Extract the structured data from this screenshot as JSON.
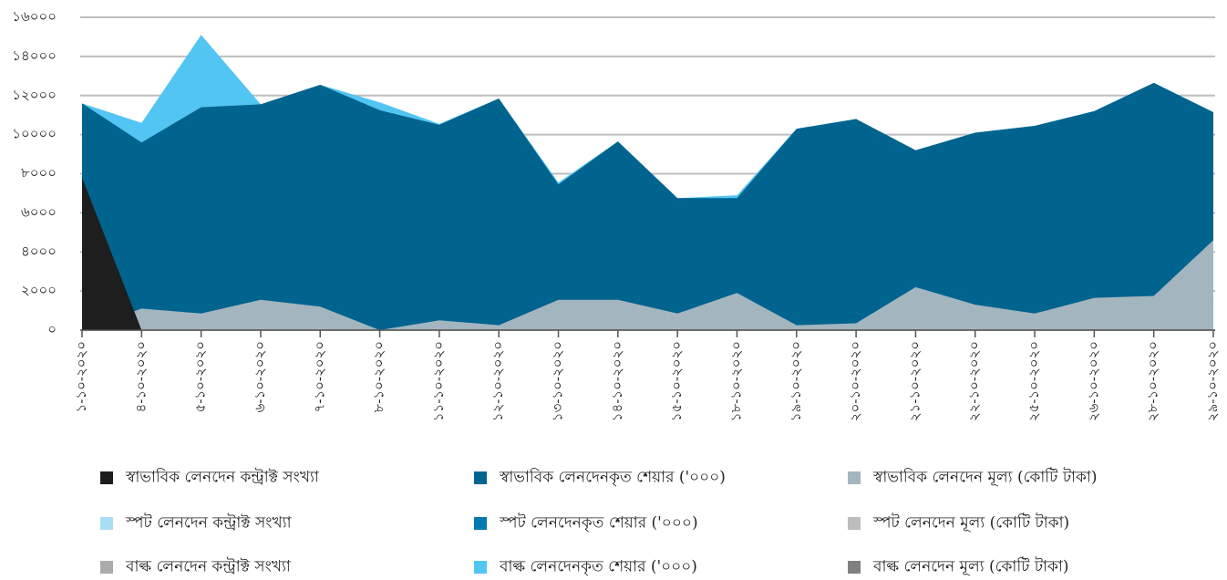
{
  "chart_data": {
    "type": "area",
    "categories": [
      "১-১০-২০২০",
      "৪-১০-২০২০",
      "৫-১০-২০২০",
      "৬-১০-২০২০",
      "৭-১০-২০২০",
      "৮-১০-২০২০",
      "১১-১০-২০২০",
      "১২-১০-২০২০",
      "১৩-১০-২০২০",
      "১৪-১০-২০২০",
      "১৫-১০-২০২০",
      "১৮-১০-২০২০",
      "১৯-১০-২০২০",
      "২০-১০-২০২০",
      "২১-১০-২০২০",
      "২২-১০-২০২০",
      "২৫-১০-২০২০",
      "২৬-১০-২০২০",
      "২৮-১০-২০২০",
      "২৯-১০-২০২০"
    ],
    "series": [
      {
        "name": "স্বাভাবিক লেনদেন কন্ট্রাক্ট সংখ্যা",
        "color": "#1e1e1e",
        "values": [
          7800,
          0,
          0,
          0,
          0,
          0,
          0,
          0,
          0,
          0,
          0,
          0,
          0,
          0,
          0,
          0,
          0,
          0,
          0,
          0
        ]
      },
      {
        "name": "স্বাভাবিক লেনদেনকৃত শেয়ার ('০০০)",
        "color": "#01648f",
        "values": [
          11600,
          9600,
          11400,
          11550,
          12550,
          11250,
          10500,
          11850,
          7450,
          9650,
          6750,
          6750,
          10300,
          10800,
          9200,
          10100,
          10450,
          11200,
          12650,
          11150
        ]
      },
      {
        "name": "স্বাভাবিক লেনদেন মূল্য (কোটি টাকা)",
        "color": "#a3b5bf",
        "values": [
          0,
          1100,
          850,
          1550,
          1200,
          0,
          500,
          250,
          1550,
          1550,
          850,
          1900,
          250,
          350,
          2200,
          1300,
          850,
          1650,
          1750,
          4600
        ]
      },
      {
        "name": "স্পট লেনদেন কন্ট্রাক্ট সংখ্যা",
        "color": "#a9dcf5"
      },
      {
        "name": "স্পট লেনদেনকৃত শেয়ার ('০০০)",
        "color": "#0079b0"
      },
      {
        "name": "স্পট লেনদেন মূল্য (কোটি টাকা)",
        "color": "#bdbdbd"
      },
      {
        "name": "বাল্ক লেনদেন কন্ট্রাক্ট সংখ্যা",
        "color": "#ababab"
      },
      {
        "name": "বাল্ক লেনদেনকৃত শেয়ার ('০০০)",
        "color": "#52c5f2",
        "values": [
          11600,
          10600,
          15100,
          11550,
          12550,
          11650,
          10550,
          11850,
          7550,
          9650,
          6750,
          6900,
          10300,
          10800,
          9200,
          10100,
          10450,
          11200,
          12650,
          11150
        ]
      },
      {
        "name": "বাল্ক লেনদেন মূল্য (কোটি টাকা)",
        "color": "#808080"
      }
    ],
    "draw_order": [
      7,
      1,
      2,
      0
    ],
    "ylim": [
      0,
      16000
    ],
    "yticks": [
      {
        "value": 0,
        "label": "০"
      },
      {
        "value": 2000,
        "label": "২০০০"
      },
      {
        "value": 4000,
        "label": "৪০০০"
      },
      {
        "value": 6000,
        "label": "৬০০০"
      },
      {
        "value": 8000,
        "label": "৮০০০"
      },
      {
        "value": 10000,
        "label": "১০০০০"
      },
      {
        "value": 12000,
        "label": "১২০০০"
      },
      {
        "value": 14000,
        "label": "১৪০০০"
      },
      {
        "value": 16000,
        "label": "১৬০০০"
      }
    ],
    "grid": true
  }
}
